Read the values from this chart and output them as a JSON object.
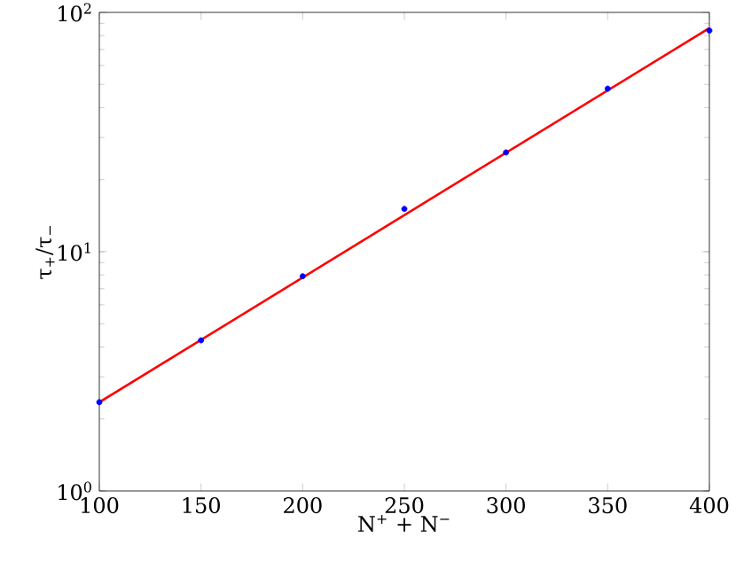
{
  "chart_data": {
    "type": "scatter",
    "xlabel": "N$^{+}$ + N$^{−}$",
    "ylabel": "τ$_{+}$/τ$_{−}$",
    "log": "y",
    "xlim": [
      100,
      400
    ],
    "ylim": [
      1,
      100
    ],
    "xticks": [
      100,
      150,
      200,
      250,
      300,
      350,
      400
    ],
    "yticks": [
      {
        "value": 1,
        "label": "10$^{0}$"
      },
      {
        "value": 10,
        "label": "10$^{1}$"
      },
      {
        "value": 100,
        "label": "10$^{2}$"
      }
    ],
    "series": [
      {
        "color": "#0000ff",
        "marker": "circle",
        "x": [
          100,
          150,
          200,
          250,
          300,
          350,
          400
        ],
        "values": [
          2.35,
          4.26,
          7.9,
          15.1,
          26,
          48,
          84
        ]
      },
      {
        "type": "line",
        "color": "#ff0000",
        "marker": "none",
        "line_style": "solid",
        "x": [
          100,
          400
        ],
        "values": [
          2.35,
          86
        ]
      }
    ]
  }
}
